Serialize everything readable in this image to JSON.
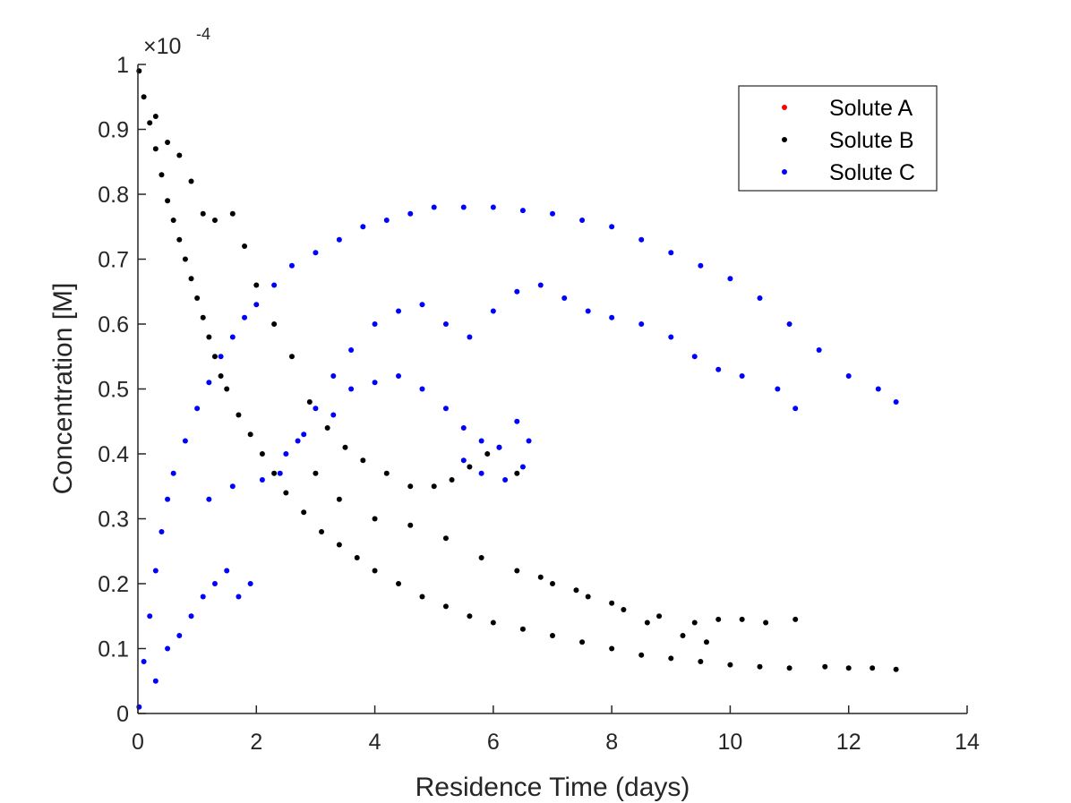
{
  "chart_data": {
    "type": "scatter",
    "title": "",
    "xlabel": "Residence Time (days)",
    "ylabel": "Concentration [M]",
    "xlim": [
      0,
      14
    ],
    "ylim": [
      0,
      1
    ],
    "xticks": [
      "0",
      "2",
      "4",
      "6",
      "8",
      "10",
      "12",
      "14"
    ],
    "yticks": [
      "0",
      "0.1",
      "0.2",
      "0.3",
      "0.4",
      "0.5",
      "0.6",
      "0.7",
      "0.8",
      "0.9",
      "1"
    ],
    "y_multiplier": {
      "base": "×10",
      "exponent": "-4"
    },
    "grid": false,
    "legend_position": "top-right",
    "series": [
      {
        "name": "Solute A",
        "color": "#ff0000",
        "points": []
      },
      {
        "name": "Solute B",
        "color": "#000000",
        "points": [
          [
            0.02,
            0.99
          ],
          [
            0.1,
            0.95
          ],
          [
            0.2,
            0.91
          ],
          [
            0.3,
            0.87
          ],
          [
            0.4,
            0.83
          ],
          [
            0.5,
            0.79
          ],
          [
            0.6,
            0.76
          ],
          [
            0.7,
            0.73
          ],
          [
            0.8,
            0.7
          ],
          [
            0.9,
            0.67
          ],
          [
            1.0,
            0.64
          ],
          [
            1.1,
            0.61
          ],
          [
            1.2,
            0.58
          ],
          [
            1.3,
            0.55
          ],
          [
            1.4,
            0.52
          ],
          [
            1.5,
            0.5
          ],
          [
            1.7,
            0.46
          ],
          [
            1.9,
            0.43
          ],
          [
            2.1,
            0.4
          ],
          [
            2.3,
            0.37
          ],
          [
            2.5,
            0.34
          ],
          [
            2.8,
            0.31
          ],
          [
            3.1,
            0.28
          ],
          [
            3.4,
            0.26
          ],
          [
            3.7,
            0.24
          ],
          [
            4.0,
            0.22
          ],
          [
            4.4,
            0.2
          ],
          [
            4.8,
            0.18
          ],
          [
            5.2,
            0.165
          ],
          [
            5.6,
            0.15
          ],
          [
            6.0,
            0.14
          ],
          [
            6.5,
            0.13
          ],
          [
            7.0,
            0.12
          ],
          [
            7.5,
            0.11
          ],
          [
            8.0,
            0.1
          ],
          [
            8.5,
            0.09
          ],
          [
            9.0,
            0.085
          ],
          [
            9.5,
            0.08
          ],
          [
            10.0,
            0.075
          ],
          [
            10.5,
            0.072
          ],
          [
            11.0,
            0.07
          ],
          [
            11.6,
            0.072
          ],
          [
            12.0,
            0.07
          ],
          [
            12.4,
            0.07
          ],
          [
            12.8,
            0.068
          ],
          [
            0.3,
            0.92
          ],
          [
            0.5,
            0.88
          ],
          [
            0.7,
            0.86
          ],
          [
            0.9,
            0.82
          ],
          [
            1.1,
            0.77
          ],
          [
            1.3,
            0.76
          ],
          [
            1.6,
            0.77
          ],
          [
            1.8,
            0.72
          ],
          [
            2.0,
            0.66
          ],
          [
            2.3,
            0.6
          ],
          [
            2.6,
            0.55
          ],
          [
            2.9,
            0.48
          ],
          [
            3.2,
            0.44
          ],
          [
            3.5,
            0.41
          ],
          [
            3.8,
            0.39
          ],
          [
            4.2,
            0.37
          ],
          [
            4.6,
            0.35
          ],
          [
            5.0,
            0.35
          ],
          [
            5.3,
            0.36
          ],
          [
            5.6,
            0.38
          ],
          [
            5.9,
            0.4
          ],
          [
            6.1,
            0.41
          ],
          [
            6.4,
            0.37
          ],
          [
            3.0,
            0.37
          ],
          [
            3.4,
            0.33
          ],
          [
            4.0,
            0.3
          ],
          [
            4.6,
            0.29
          ],
          [
            5.2,
            0.27
          ],
          [
            5.8,
            0.24
          ],
          [
            6.4,
            0.22
          ],
          [
            7.0,
            0.2
          ],
          [
            7.6,
            0.18
          ],
          [
            8.2,
            0.16
          ],
          [
            8.8,
            0.15
          ],
          [
            9.4,
            0.14
          ],
          [
            9.8,
            0.145
          ],
          [
            10.2,
            0.145
          ],
          [
            10.6,
            0.14
          ],
          [
            11.1,
            0.145
          ],
          [
            6.8,
            0.21
          ],
          [
            7.4,
            0.19
          ],
          [
            8.0,
            0.17
          ],
          [
            8.6,
            0.14
          ],
          [
            9.2,
            0.12
          ],
          [
            9.6,
            0.11
          ]
        ]
      },
      {
        "name": "Solute C",
        "color": "#0000ff",
        "points": [
          [
            0.02,
            0.01
          ],
          [
            0.1,
            0.08
          ],
          [
            0.2,
            0.15
          ],
          [
            0.3,
            0.22
          ],
          [
            0.4,
            0.28
          ],
          [
            0.5,
            0.33
          ],
          [
            0.6,
            0.37
          ],
          [
            0.8,
            0.42
          ],
          [
            1.0,
            0.47
          ],
          [
            1.2,
            0.51
          ],
          [
            1.4,
            0.55
          ],
          [
            1.6,
            0.58
          ],
          [
            1.8,
            0.61
          ],
          [
            2.0,
            0.63
          ],
          [
            2.3,
            0.66
          ],
          [
            2.6,
            0.69
          ],
          [
            3.0,
            0.71
          ],
          [
            3.4,
            0.73
          ],
          [
            3.8,
            0.75
          ],
          [
            4.2,
            0.76
          ],
          [
            4.6,
            0.77
          ],
          [
            5.0,
            0.78
          ],
          [
            5.5,
            0.78
          ],
          [
            6.0,
            0.78
          ],
          [
            6.5,
            0.775
          ],
          [
            7.0,
            0.77
          ],
          [
            7.5,
            0.76
          ],
          [
            8.0,
            0.75
          ],
          [
            8.5,
            0.73
          ],
          [
            9.0,
            0.71
          ],
          [
            9.5,
            0.69
          ],
          [
            10.0,
            0.67
          ],
          [
            10.5,
            0.64
          ],
          [
            11.0,
            0.6
          ],
          [
            11.5,
            0.56
          ],
          [
            12.0,
            0.52
          ],
          [
            12.5,
            0.5
          ],
          [
            12.8,
            0.48
          ],
          [
            0.3,
            0.05
          ],
          [
            0.5,
            0.1
          ],
          [
            0.7,
            0.12
          ],
          [
            0.9,
            0.15
          ],
          [
            1.1,
            0.18
          ],
          [
            1.3,
            0.2
          ],
          [
            1.5,
            0.22
          ],
          [
            1.7,
            0.18
          ],
          [
            1.9,
            0.2
          ],
          [
            2.1,
            0.36
          ],
          [
            2.4,
            0.37
          ],
          [
            2.7,
            0.42
          ],
          [
            3.0,
            0.47
          ],
          [
            3.3,
            0.52
          ],
          [
            3.6,
            0.56
          ],
          [
            4.0,
            0.6
          ],
          [
            4.4,
            0.62
          ],
          [
            4.8,
            0.63
          ],
          [
            5.2,
            0.6
          ],
          [
            5.6,
            0.58
          ],
          [
            6.0,
            0.62
          ],
          [
            6.4,
            0.65
          ],
          [
            6.8,
            0.66
          ],
          [
            7.2,
            0.64
          ],
          [
            7.6,
            0.62
          ],
          [
            8.0,
            0.61
          ],
          [
            8.5,
            0.6
          ],
          [
            9.0,
            0.58
          ],
          [
            9.4,
            0.55
          ],
          [
            9.8,
            0.53
          ],
          [
            10.2,
            0.52
          ],
          [
            10.8,
            0.5
          ],
          [
            11.1,
            0.47
          ],
          [
            3.6,
            0.5
          ],
          [
            4.0,
            0.51
          ],
          [
            4.4,
            0.52
          ],
          [
            4.8,
            0.5
          ],
          [
            5.2,
            0.47
          ],
          [
            5.5,
            0.44
          ],
          [
            5.8,
            0.42
          ],
          [
            6.1,
            0.41
          ],
          [
            6.4,
            0.45
          ],
          [
            6.6,
            0.42
          ],
          [
            6.5,
            0.38
          ],
          [
            6.2,
            0.36
          ],
          [
            5.8,
            0.37
          ],
          [
            5.5,
            0.39
          ],
          [
            3.3,
            0.46
          ],
          [
            2.8,
            0.43
          ],
          [
            2.5,
            0.4
          ],
          [
            1.6,
            0.35
          ],
          [
            1.2,
            0.33
          ]
        ]
      }
    ]
  }
}
